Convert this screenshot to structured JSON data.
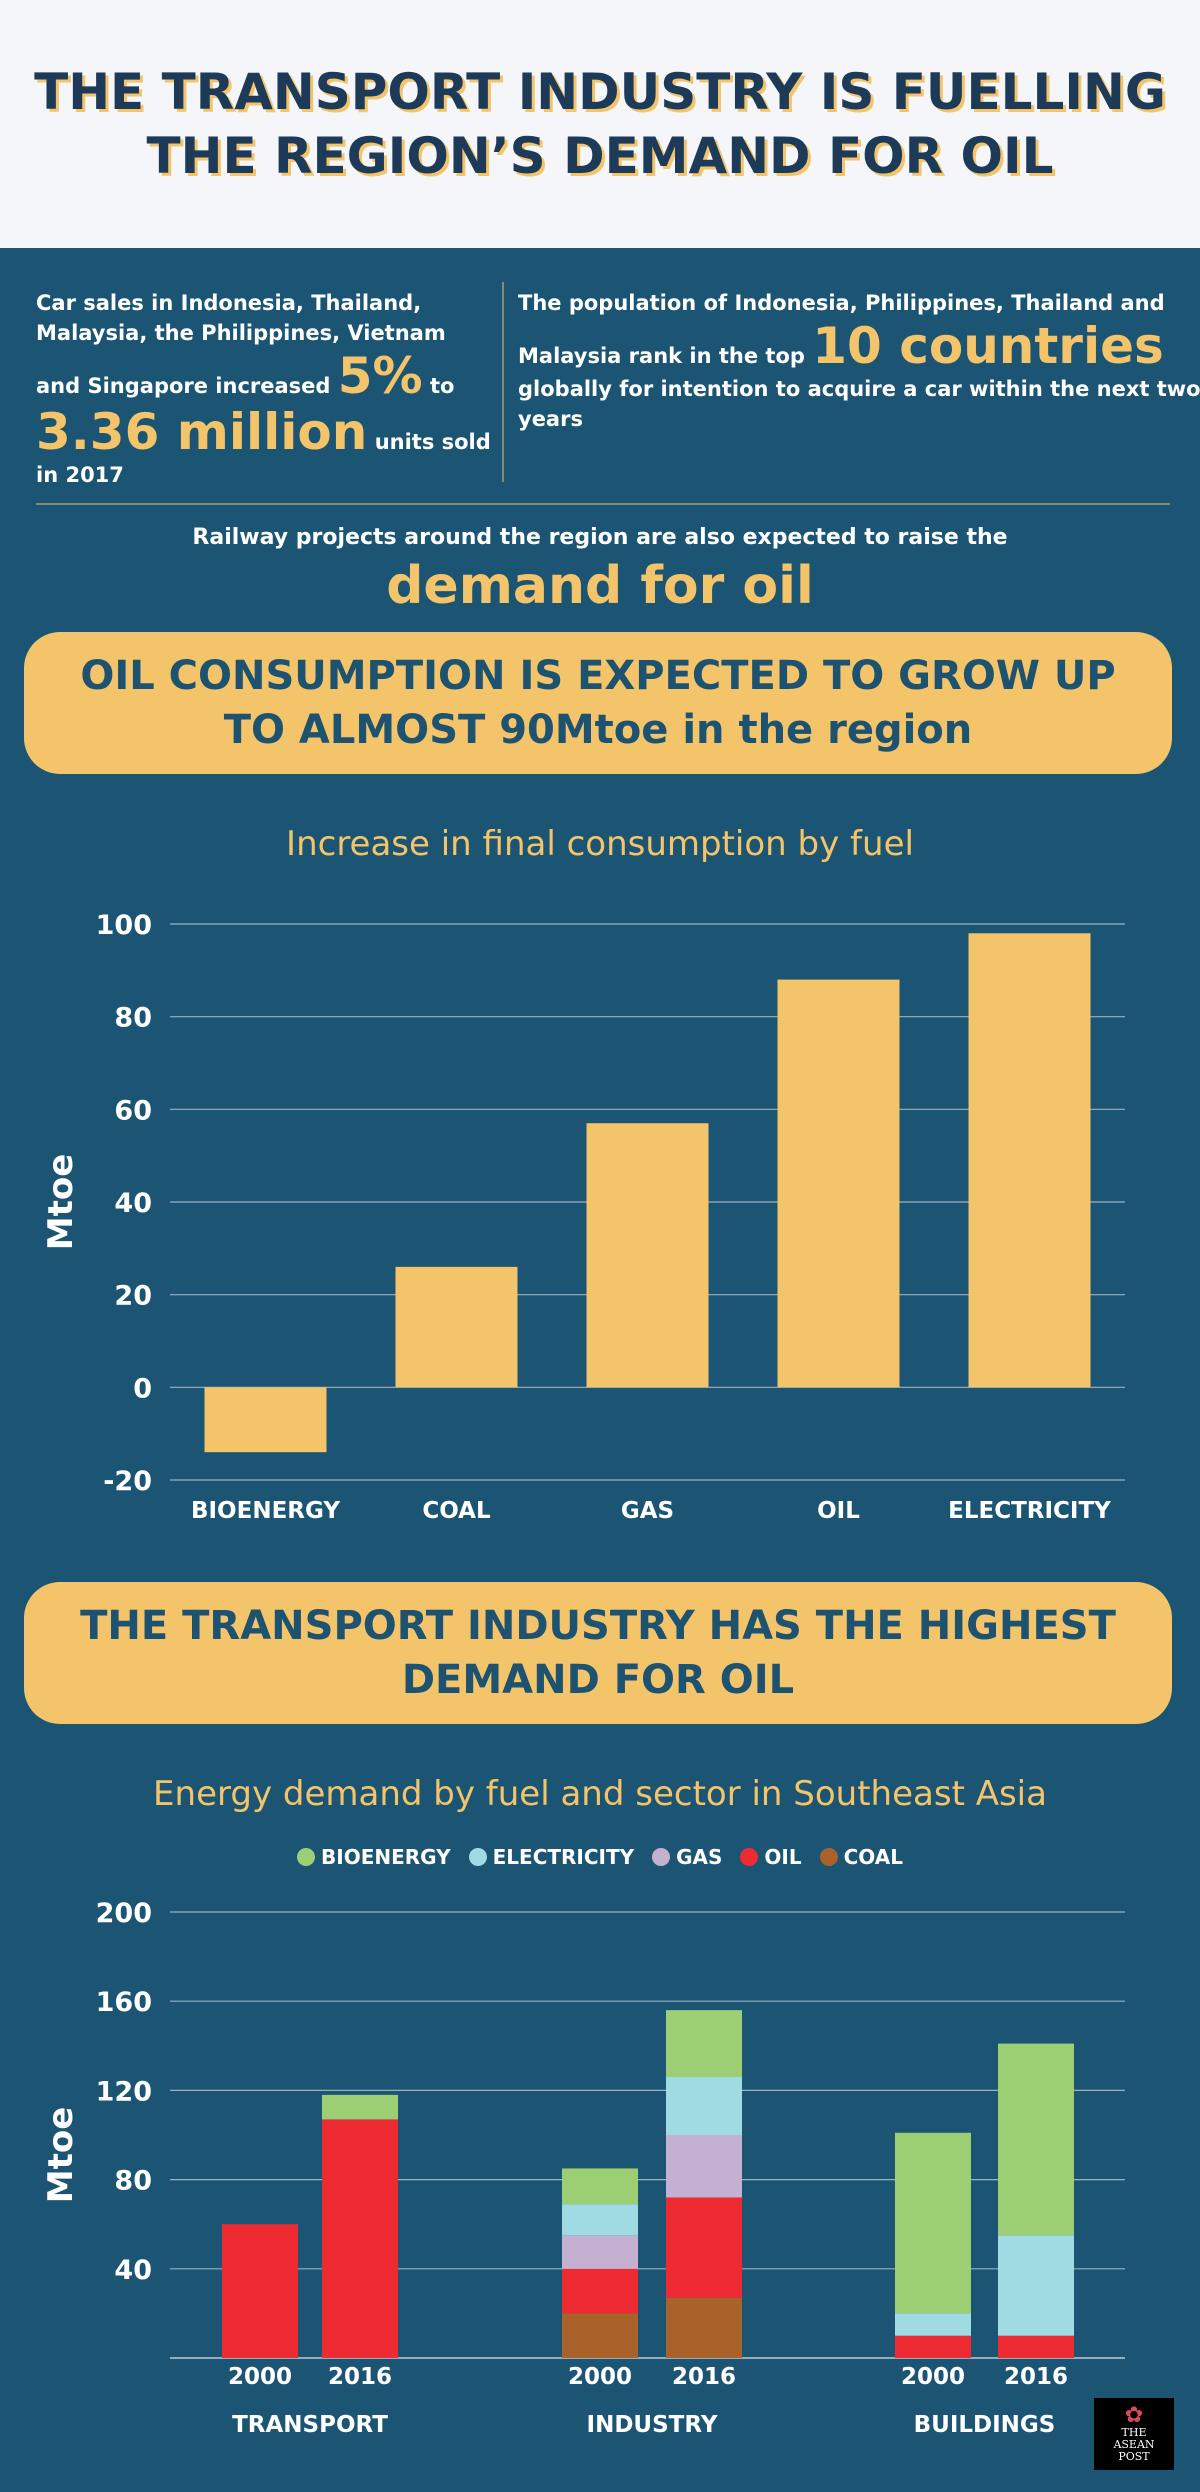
{
  "header": {
    "title_line1": "THE TRANSPORT INDUSTRY IS FUELLING",
    "title_line2": "THE REGION’S DEMAND FOR OIL"
  },
  "stats": {
    "left_text1": "Car sales in Indonesia, Thailand, Malaysia, the Philippines, Vietnam and Singapore increased",
    "left_big1": "5%",
    "left_text2": "to",
    "left_big2": "3.36 million",
    "left_text3": "units sold in 2017",
    "right_text1": "The population of Indonesia, Philippines, Thailand and Malaysia rank in the top",
    "right_big": "10 countries",
    "right_text2": "globally for intention to acquire a car within the next two years"
  },
  "rail": {
    "text": "Railway projects around the region are also expected to raise the",
    "big": "demand for oil"
  },
  "banner1": {
    "line1": "OIL CONSUMPTION IS EXPECTED TO GROW UP",
    "line2": "TO ALMOST 90Mtoe in the region"
  },
  "banner2": {
    "line1": "THE TRANSPORT INDUSTRY HAS THE HIGHEST",
    "line2": "DEMAND FOR OIL"
  },
  "colors": {
    "background": "#1b5573",
    "accent": "#f3c46a",
    "bioenergy": "#9ccf74",
    "electricity": "#a0dbe3",
    "gas": "#c4b0d0",
    "oil": "#ee2b33",
    "coal": "#a8622a"
  },
  "logo": {
    "line1": "THE",
    "line2": "ASEAN",
    "line3": "POST",
    "icon": "bird-icon"
  },
  "chart_data": [
    {
      "type": "bar",
      "title": "Increase in final consumption by fuel",
      "ylabel": "Mtoe",
      "xlabel": "",
      "categories": [
        "BIOENERGY",
        "COAL",
        "GAS",
        "OIL",
        "ELECTRICITY"
      ],
      "values": [
        -14,
        26,
        57,
        88,
        98
      ],
      "ylim": [
        -20,
        100
      ],
      "yticks": [
        "-20",
        "0",
        "20",
        "40",
        "60",
        "80",
        "100"
      ],
      "grid": true
    },
    {
      "type": "bar",
      "stacked": true,
      "title": "Energy demand by fuel and sector in Southeast Asia",
      "ylabel": "Mtoe",
      "xlabel": "",
      "legend_position": "top",
      "groups": [
        "TRANSPORT",
        "INDUSTRY",
        "BUILDINGS"
      ],
      "years": [
        "2000",
        "2016"
      ],
      "categories": [
        "TRANSPORT 2000",
        "TRANSPORT 2016",
        "INDUSTRY 2000",
        "INDUSTRY 2016",
        "BUILDINGS 2000",
        "BUILDINGS 2016"
      ],
      "series": [
        {
          "name": "COAL",
          "values": [
            0,
            0,
            20,
            27,
            0,
            0
          ]
        },
        {
          "name": "OIL",
          "values": [
            60,
            107,
            20,
            45,
            10,
            10
          ]
        },
        {
          "name": "GAS",
          "values": [
            0,
            0,
            15,
            28,
            0,
            0
          ]
        },
        {
          "name": "ELECTRICITY",
          "values": [
            0,
            0,
            14,
            26,
            10,
            45
          ]
        },
        {
          "name": "BIOENERGY",
          "values": [
            0,
            11,
            16,
            30,
            81,
            86
          ]
        }
      ],
      "ylim": [
        0,
        200
      ],
      "yticks": [
        "40",
        "80",
        "120",
        "160",
        "200"
      ],
      "grid": true
    }
  ]
}
